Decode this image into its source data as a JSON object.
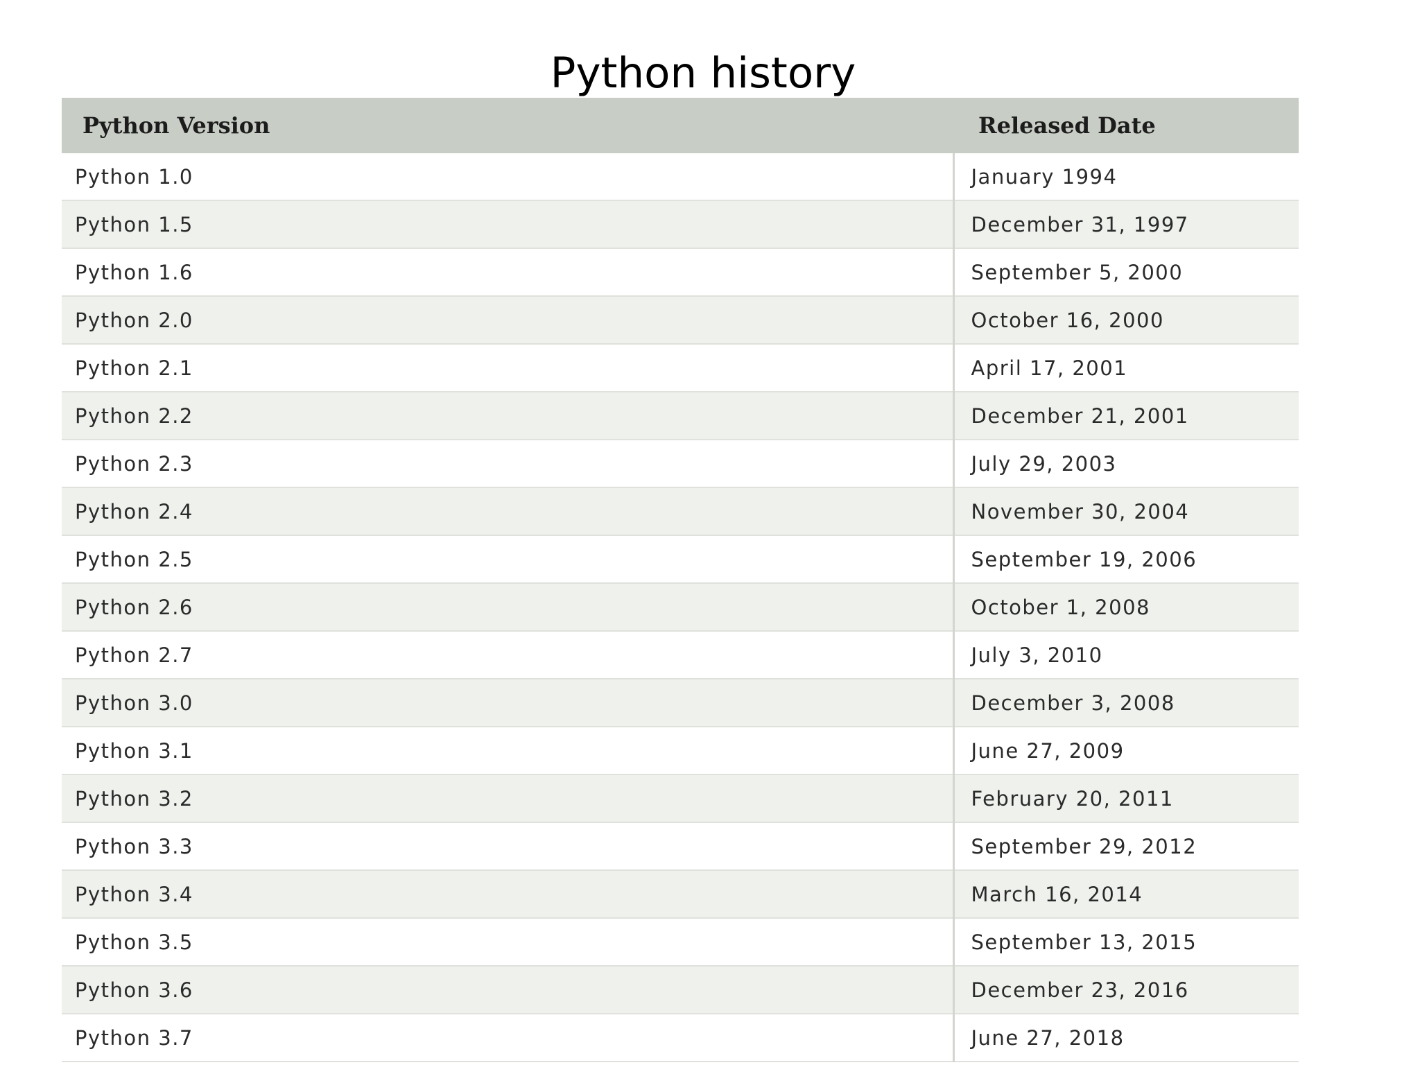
{
  "slide": {
    "title": "Python history"
  },
  "table": {
    "headers": [
      "Python Version",
      "Released Date"
    ],
    "rows": [
      {
        "version": "Python 1.0",
        "date": "January 1994"
      },
      {
        "version": "Python 1.5",
        "date": "December 31, 1997"
      },
      {
        "version": "Python 1.6",
        "date": "September 5, 2000"
      },
      {
        "version": "Python 2.0",
        "date": "October 16, 2000"
      },
      {
        "version": "Python 2.1",
        "date": "April 17, 2001"
      },
      {
        "version": "Python 2.2",
        "date": "December 21, 2001"
      },
      {
        "version": "Python 2.3",
        "date": "July 29, 2003"
      },
      {
        "version": "Python 2.4",
        "date": "November 30, 2004"
      },
      {
        "version": "Python 2.5",
        "date": "September 19, 2006"
      },
      {
        "version": "Python 2.6",
        "date": "October 1, 2008"
      },
      {
        "version": "Python 2.7",
        "date": "July 3, 2010"
      },
      {
        "version": "Python 3.0",
        "date": "December 3, 2008"
      },
      {
        "version": "Python 3.1",
        "date": "June 27, 2009"
      },
      {
        "version": "Python 3.2",
        "date": "February 20, 2011"
      },
      {
        "version": "Python 3.3",
        "date": "September 29, 2012"
      },
      {
        "version": "Python 3.4",
        "date": "March 16, 2014"
      },
      {
        "version": "Python 3.5",
        "date": "September 13, 2015"
      },
      {
        "version": "Python 3.6",
        "date": "December 23, 2016"
      },
      {
        "version": "Python 3.7",
        "date": "June 27, 2018"
      }
    ]
  },
  "colors": {
    "header_background": "#c8cdc5",
    "striped_row_background": "#eff1ed",
    "row_background": "#ffffff"
  }
}
